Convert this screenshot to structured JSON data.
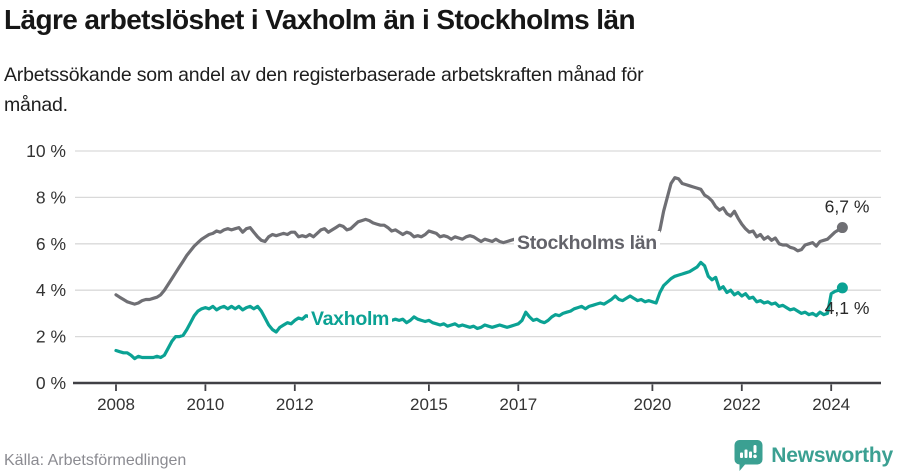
{
  "header": {
    "title": "Lägre arbetslöshet i Vaxholm än i Stockholms län",
    "subtitle_line1": "Arbetssökande som andel av den registerbaserade arbetskraften månad för",
    "subtitle_line2": "månad."
  },
  "chart_data": {
    "type": "line",
    "title": "Lägre arbetslöshet i Vaxholm än i Stockholms län",
    "subtitle": "Arbetssökande som andel av den registerbaserade arbetskraften månad för månad.",
    "x_unit": "month",
    "start": "2008-01",
    "end": "2024-04",
    "x_range": [
      2008,
      2024.33
    ],
    "ylim": [
      0,
      10
    ],
    "grid": true,
    "x_ticks": [
      {
        "year": 2008,
        "label": "2008"
      },
      {
        "year": 2010,
        "label": "2010"
      },
      {
        "year": 2012,
        "label": "2012"
      },
      {
        "year": 2015,
        "label": "2015"
      },
      {
        "year": 2017,
        "label": "2017"
      },
      {
        "year": 2020,
        "label": "2020"
      },
      {
        "year": 2022,
        "label": "2022"
      },
      {
        "year": 2024,
        "label": "2024"
      }
    ],
    "y_ticks": [
      {
        "value": 0,
        "label": "0 %"
      },
      {
        "value": 2,
        "label": "2 %"
      },
      {
        "value": 4,
        "label": "4 %"
      },
      {
        "value": 6,
        "label": "6 %"
      },
      {
        "value": 8,
        "label": "8 %"
      },
      {
        "value": 10,
        "label": "10 %"
      }
    ],
    "series": [
      {
        "name": "Stockholms län",
        "color": "#6f6f74",
        "end_label": "6,7 %",
        "values": [
          3.8,
          3.7,
          3.6,
          3.5,
          3.45,
          3.4,
          3.45,
          3.55,
          3.6,
          3.6,
          3.65,
          3.7,
          3.8,
          4.0,
          4.25,
          4.5,
          4.75,
          5.0,
          5.25,
          5.5,
          5.7,
          5.9,
          6.05,
          6.2,
          6.3,
          6.4,
          6.45,
          6.55,
          6.5,
          6.6,
          6.65,
          6.6,
          6.65,
          6.7,
          6.5,
          6.65,
          6.7,
          6.5,
          6.3,
          6.15,
          6.1,
          6.3,
          6.4,
          6.35,
          6.4,
          6.45,
          6.4,
          6.5,
          6.5,
          6.3,
          6.35,
          6.3,
          6.4,
          6.3,
          6.45,
          6.6,
          6.65,
          6.5,
          6.6,
          6.7,
          6.8,
          6.75,
          6.6,
          6.65,
          6.8,
          6.95,
          7.0,
          7.05,
          7.0,
          6.9,
          6.85,
          6.8,
          6.8,
          6.7,
          6.55,
          6.6,
          6.5,
          6.4,
          6.5,
          6.45,
          6.3,
          6.35,
          6.3,
          6.4,
          6.55,
          6.5,
          6.45,
          6.3,
          6.35,
          6.3,
          6.2,
          6.3,
          6.25,
          6.2,
          6.3,
          6.35,
          6.3,
          6.2,
          6.1,
          6.2,
          6.15,
          6.1,
          6.2,
          6.1,
          6.05,
          6.1,
          6.15,
          6.2,
          6.2,
          6.1,
          6.0,
          6.0,
          5.95,
          5.9,
          5.95,
          6.0,
          5.95,
          5.9,
          5.95,
          6.0,
          6.0,
          5.95,
          5.9,
          5.85,
          5.9,
          5.95,
          5.9,
          5.85,
          5.9,
          5.95,
          6.0,
          6.05,
          6.1,
          6.05,
          6.0,
          6.05,
          6.1,
          6.15,
          6.2,
          6.15,
          6.1,
          6.15,
          6.2,
          6.25,
          6.3,
          6.3,
          6.6,
          7.4,
          8.0,
          8.6,
          8.85,
          8.8,
          8.6,
          8.55,
          8.5,
          8.45,
          8.4,
          8.35,
          8.1,
          8.0,
          7.85,
          7.6,
          7.45,
          7.55,
          7.3,
          7.2,
          7.4,
          7.1,
          6.85,
          6.65,
          6.5,
          6.55,
          6.3,
          6.4,
          6.2,
          6.3,
          6.15,
          6.25,
          6.0,
          5.95,
          5.95,
          5.85,
          5.8,
          5.7,
          5.75,
          5.95,
          6.0,
          6.05,
          5.9,
          6.1,
          6.15,
          6.2,
          6.35,
          6.5,
          6.6,
          6.7
        ]
      },
      {
        "name": "Vaxholm",
        "color": "#0ba294",
        "end_label": "4,1 %",
        "values": [
          1.4,
          1.35,
          1.3,
          1.3,
          1.2,
          1.05,
          1.15,
          1.1,
          1.1,
          1.1,
          1.1,
          1.15,
          1.1,
          1.2,
          1.5,
          1.8,
          2.0,
          2.0,
          2.05,
          2.3,
          2.6,
          2.9,
          3.1,
          3.2,
          3.25,
          3.2,
          3.3,
          3.15,
          3.25,
          3.3,
          3.2,
          3.3,
          3.2,
          3.3,
          3.15,
          3.25,
          3.3,
          3.2,
          3.3,
          3.1,
          2.8,
          2.5,
          2.3,
          2.2,
          2.4,
          2.5,
          2.6,
          2.55,
          2.7,
          2.8,
          2.75,
          2.9,
          2.85,
          2.8,
          2.9,
          2.95,
          3.0,
          3.1,
          3.0,
          2.95,
          2.9,
          2.95,
          3.0,
          2.9,
          2.95,
          3.0,
          3.05,
          3.0,
          2.95,
          2.9,
          2.85,
          2.8,
          2.8,
          2.75,
          2.7,
          2.75,
          2.7,
          2.75,
          2.6,
          2.7,
          2.85,
          2.75,
          2.7,
          2.65,
          2.7,
          2.6,
          2.55,
          2.5,
          2.55,
          2.45,
          2.5,
          2.55,
          2.45,
          2.5,
          2.45,
          2.4,
          2.45,
          2.35,
          2.4,
          2.5,
          2.45,
          2.4,
          2.45,
          2.5,
          2.45,
          2.4,
          2.45,
          2.5,
          2.55,
          2.7,
          3.05,
          2.85,
          2.7,
          2.75,
          2.65,
          2.6,
          2.7,
          2.85,
          2.95,
          2.9,
          3.0,
          3.05,
          3.1,
          3.2,
          3.25,
          3.3,
          3.2,
          3.3,
          3.35,
          3.4,
          3.45,
          3.4,
          3.5,
          3.6,
          3.75,
          3.6,
          3.55,
          3.65,
          3.75,
          3.65,
          3.55,
          3.6,
          3.5,
          3.55,
          3.5,
          3.45,
          3.9,
          4.2,
          4.35,
          4.5,
          4.6,
          4.65,
          4.7,
          4.75,
          4.8,
          4.9,
          5.0,
          5.2,
          5.05,
          4.6,
          4.45,
          4.55,
          4.05,
          4.15,
          3.9,
          4.0,
          3.8,
          3.9,
          3.75,
          3.85,
          3.65,
          3.7,
          3.5,
          3.55,
          3.45,
          3.5,
          3.4,
          3.45,
          3.3,
          3.35,
          3.25,
          3.15,
          3.2,
          3.1,
          3.0,
          3.05,
          2.95,
          3.0,
          2.9,
          3.05,
          2.95,
          3.0,
          3.85,
          3.95,
          4.0,
          4.1
        ]
      }
    ]
  },
  "footer": {
    "source": "Källa: Arbetsförmedlingen",
    "logo_text": "Newsworthy"
  },
  "colors": {
    "stockholm_line": "#6f6f74",
    "vaxholm_line": "#0ba294",
    "gridline": "#d9d9d9",
    "axis": "#404045",
    "brand_teal": "#3ba092"
  }
}
